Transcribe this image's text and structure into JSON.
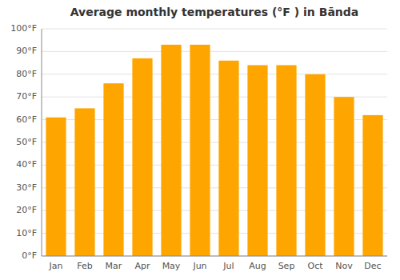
{
  "chart_data": {
    "type": "bar",
    "title": "Average monthly temperatures (°F ) in Bānda",
    "categories": [
      "Jan",
      "Feb",
      "Mar",
      "Apr",
      "May",
      "Jun",
      "Jul",
      "Aug",
      "Sep",
      "Oct",
      "Nov",
      "Dec"
    ],
    "values": [
      61,
      65,
      76,
      87,
      93,
      93,
      86,
      84,
      84,
      80,
      70,
      62
    ],
    "color": "#FFA500",
    "ylim": [
      0,
      100
    ],
    "yticks": [
      {
        "value": 0,
        "label": "0°F"
      },
      {
        "value": 10,
        "label": "10°F"
      },
      {
        "value": 20,
        "label": "20°F"
      },
      {
        "value": 30,
        "label": "30°F"
      },
      {
        "value": 40,
        "label": "40°F"
      },
      {
        "value": 50,
        "label": "50°F"
      },
      {
        "value": 60,
        "label": "60°F"
      },
      {
        "value": 70,
        "label": "70°F"
      },
      {
        "value": 80,
        "label": "80°F"
      },
      {
        "value": 90,
        "label": "90°F"
      },
      {
        "value": 100,
        "label": "100°F"
      }
    ],
    "grid": true
  }
}
